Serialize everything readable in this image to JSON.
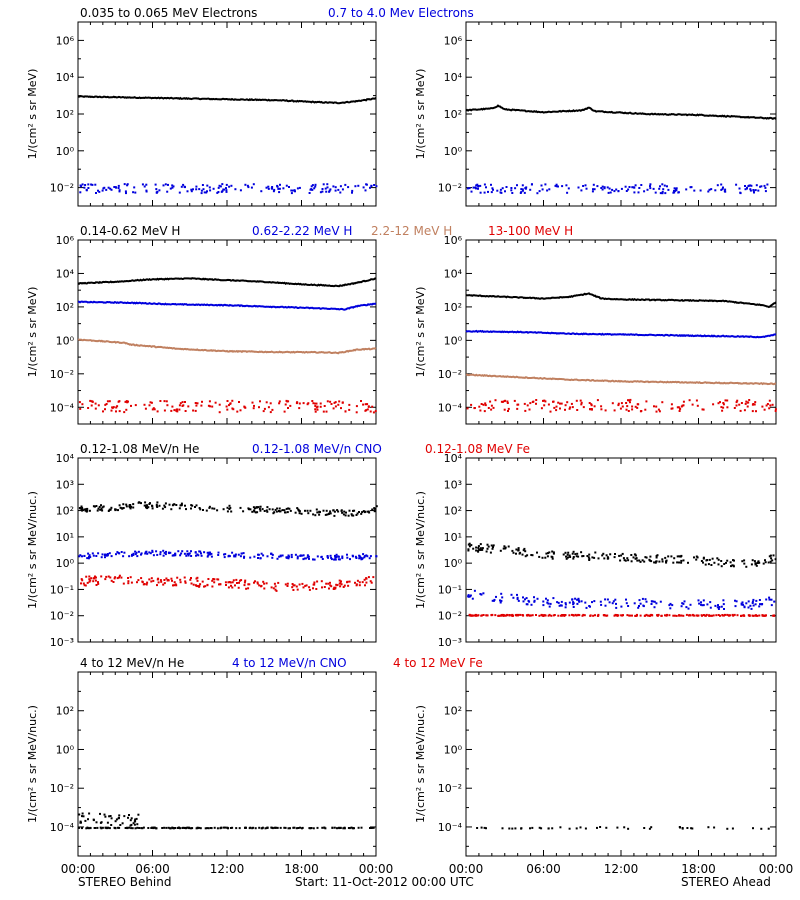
{
  "colors": {
    "black": "#000000",
    "blue": "#0000dd",
    "brown": "#c08060",
    "red": "#e00000"
  },
  "footer": {
    "left": "STEREO Behind",
    "center": "Start: 11-Oct-2012 00:00 UTC",
    "right": "STEREO Ahead"
  },
  "time_ticks": [
    "00:00",
    "06:00",
    "12:00",
    "18:00",
    "00:00"
  ],
  "rows": [
    {
      "legend": [
        {
          "text": "0.035 to 0.065 MeV Electrons",
          "color": "black"
        },
        {
          "text": "0.7 to 4.0 Mev Electrons",
          "color": "blue"
        }
      ],
      "ylabel": "1/(cm² s sr MeV)",
      "yticks": [
        "10⁻²",
        "10⁰",
        "10²",
        "10⁴",
        "10⁶"
      ]
    },
    {
      "legend": [
        {
          "text": "0.14-0.62 MeV H",
          "color": "black"
        },
        {
          "text": "0.62-2.22 MeV H",
          "color": "blue"
        },
        {
          "text": "2.2-12 MeV H",
          "color": "brown"
        },
        {
          "text": "13-100 MeV H",
          "color": "red"
        }
      ],
      "ylabel": "1/(cm² s sr MeV)",
      "yticks": [
        "10⁻⁴",
        "10⁻²",
        "10⁰",
        "10²",
        "10⁴",
        "10⁶"
      ]
    },
    {
      "legend": [
        {
          "text": "0.12-1.08 MeV/n He",
          "color": "black"
        },
        {
          "text": "0.12-1.08 MeV/n CNO",
          "color": "blue"
        },
        {
          "text": "0.12-1.08 MeV Fe",
          "color": "red"
        }
      ],
      "ylabel": "1/(cm² s sr MeV/nuc.)",
      "yticks": [
        "10⁻³",
        "10⁻²",
        "10⁻¹",
        "10⁰",
        "10¹",
        "10²",
        "10³",
        "10⁴"
      ]
    },
    {
      "legend": [
        {
          "text": "4 to 12 MeV/n He",
          "color": "black"
        },
        {
          "text": "4 to 12 MeV/n CNO",
          "color": "blue"
        },
        {
          "text": "4 to 12 MeV Fe",
          "color": "red"
        }
      ],
      "ylabel": "1/(cm² s sr MeV/nuc.)",
      "yticks": [
        "10⁻⁴",
        "10⁻²",
        "10⁰",
        "10²"
      ]
    }
  ],
  "chart_data": [
    {
      "type": "scatter",
      "spacecraft": "STEREO Behind",
      "row": 0,
      "xlim": [
        0,
        24
      ],
      "ylim": [
        -3,
        7
      ],
      "yscale": "log",
      "series": [
        {
          "color": "black",
          "style": "line",
          "x": [
            0,
            4,
            8,
            12,
            16,
            19,
            21,
            22.5,
            24
          ],
          "y": [
            2.95,
            2.9,
            2.85,
            2.8,
            2.75,
            2.65,
            2.6,
            2.7,
            2.85
          ]
        },
        {
          "color": "blue",
          "style": "dots",
          "x": [
            0,
            24
          ],
          "y": [
            -2.0,
            -2.0
          ],
          "spread": 0.25
        }
      ]
    },
    {
      "type": "scatter",
      "spacecraft": "STEREO Ahead",
      "row": 0,
      "xlim": [
        0,
        24
      ],
      "ylim": [
        -3,
        7
      ],
      "yscale": "log",
      "series": [
        {
          "color": "black",
          "style": "line",
          "x": [
            0,
            2,
            2.5,
            3,
            6,
            9,
            9.5,
            10,
            14,
            18,
            21,
            24
          ],
          "y": [
            2.2,
            2.3,
            2.45,
            2.25,
            2.1,
            2.2,
            2.35,
            2.15,
            2.0,
            1.95,
            1.85,
            1.75
          ]
        },
        {
          "color": "blue",
          "style": "dots",
          "x": [
            0,
            24
          ],
          "y": [
            -2.0,
            -2.0
          ],
          "spread": 0.25
        }
      ]
    },
    {
      "type": "scatter",
      "spacecraft": "STEREO Behind",
      "row": 1,
      "xlim": [
        0,
        24
      ],
      "ylim": [
        -5,
        6
      ],
      "yscale": "log",
      "series": [
        {
          "color": "black",
          "style": "line",
          "x": [
            0,
            3,
            6,
            9,
            12,
            15,
            18,
            21,
            22.5,
            24
          ],
          "y": [
            3.4,
            3.5,
            3.65,
            3.7,
            3.6,
            3.5,
            3.35,
            3.25,
            3.45,
            3.7
          ]
        },
        {
          "color": "blue",
          "style": "line",
          "x": [
            0,
            4,
            8,
            12,
            16,
            20,
            21.5,
            22.5,
            24
          ],
          "y": [
            2.3,
            2.25,
            2.15,
            2.1,
            2.0,
            1.9,
            1.85,
            2.05,
            2.2
          ]
        },
        {
          "color": "brown",
          "style": "line",
          "x": [
            0,
            3.8,
            4.2,
            8,
            12,
            16,
            20,
            21,
            22.5,
            24
          ],
          "y": [
            0.05,
            -0.15,
            -0.25,
            -0.5,
            -0.65,
            -0.7,
            -0.72,
            -0.75,
            -0.55,
            -0.5
          ]
        },
        {
          "color": "red",
          "style": "dots",
          "x": [
            0,
            24
          ],
          "y": [
            -3.9,
            -3.9
          ],
          "spread": 0.35
        }
      ]
    },
    {
      "type": "scatter",
      "spacecraft": "STEREO Ahead",
      "row": 1,
      "xlim": [
        0,
        24
      ],
      "ylim": [
        -5,
        6
      ],
      "yscale": "log",
      "series": [
        {
          "color": "black",
          "style": "line",
          "x": [
            0,
            3,
            6,
            8,
            9.5,
            10.5,
            12,
            16,
            20,
            23,
            23.5,
            24
          ],
          "y": [
            2.7,
            2.6,
            2.5,
            2.6,
            2.8,
            2.5,
            2.45,
            2.4,
            2.35,
            2.1,
            2.0,
            2.3
          ]
        },
        {
          "color": "blue",
          "style": "line",
          "x": [
            0,
            4,
            8,
            12,
            16,
            20,
            23,
            24
          ],
          "y": [
            0.55,
            0.5,
            0.4,
            0.35,
            0.3,
            0.25,
            0.2,
            0.35
          ]
        },
        {
          "color": "brown",
          "style": "line",
          "x": [
            0,
            4,
            8,
            12,
            16,
            20,
            24
          ],
          "y": [
            -2.05,
            -2.2,
            -2.35,
            -2.45,
            -2.5,
            -2.55,
            -2.6
          ]
        },
        {
          "color": "red",
          "style": "dots",
          "x": [
            0,
            24
          ],
          "y": [
            -3.85,
            -3.85
          ],
          "spread": 0.35
        }
      ]
    },
    {
      "type": "scatter",
      "spacecraft": "STEREO Behind",
      "row": 2,
      "xlim": [
        0,
        24
      ],
      "ylim": [
        -3,
        4
      ],
      "yscale": "log",
      "series": [
        {
          "color": "black",
          "style": "dots-dense",
          "x": [
            0,
            3,
            5,
            8,
            12,
            16,
            20,
            22,
            24
          ],
          "y": [
            2.1,
            2.15,
            2.25,
            2.2,
            2.1,
            2.05,
            1.95,
            1.95,
            2.1
          ],
          "spread": 0.12
        },
        {
          "color": "blue",
          "style": "dots-dense",
          "x": [
            0,
            4,
            8,
            12,
            16,
            20,
            24
          ],
          "y": [
            0.3,
            0.4,
            0.42,
            0.35,
            0.3,
            0.25,
            0.3
          ],
          "spread": 0.1
        },
        {
          "color": "red",
          "style": "dots-dense",
          "x": [
            0,
            4,
            8,
            12,
            16,
            20,
            22,
            24
          ],
          "y": [
            -0.65,
            -0.6,
            -0.65,
            -0.75,
            -0.85,
            -0.8,
            -0.75,
            -0.6
          ],
          "spread": 0.17
        }
      ]
    },
    {
      "type": "scatter",
      "spacecraft": "STEREO Ahead",
      "row": 2,
      "xlim": [
        0,
        24
      ],
      "ylim": [
        -3,
        4
      ],
      "yscale": "log",
      "series": [
        {
          "color": "black",
          "style": "dots-dense",
          "x": [
            0,
            3,
            6,
            10,
            14,
            18,
            21,
            23,
            24
          ],
          "y": [
            0.65,
            0.55,
            0.35,
            0.3,
            0.2,
            0.15,
            0.0,
            0.1,
            0.35
          ],
          "spread": 0.15
        },
        {
          "color": "blue",
          "style": "dots",
          "x": [
            0,
            3,
            6,
            10,
            14,
            18,
            22,
            24
          ],
          "y": [
            -1.15,
            -1.3,
            -1.45,
            -1.5,
            -1.5,
            -1.55,
            -1.55,
            -1.4
          ],
          "spread": 0.18
        },
        {
          "color": "red",
          "style": "dots-dense",
          "x": [
            0,
            24
          ],
          "y": [
            -1.95,
            -1.95
          ],
          "spread": 0.02
        }
      ]
    },
    {
      "type": "scatter",
      "spacecraft": "STEREO Behind",
      "row": 3,
      "xlim": [
        0,
        24
      ],
      "ylim": [
        -5.5,
        4
      ],
      "yscale": "log",
      "series": [
        {
          "color": "black",
          "style": "dots",
          "x": [
            0,
            24
          ],
          "y": [
            -4.0,
            -4.0
          ],
          "spread": 0.02
        },
        {
          "color": "black",
          "style": "dots-sparse",
          "x": [
            0,
            5
          ],
          "y": [
            -3.5,
            -3.6
          ],
          "spread": 0.3
        }
      ]
    },
    {
      "type": "scatter",
      "spacecraft": "STEREO Ahead",
      "row": 3,
      "xlim": [
        0,
        24
      ],
      "ylim": [
        -5.5,
        4
      ],
      "yscale": "log",
      "series": [
        {
          "color": "black",
          "style": "dots-sparse",
          "x": [
            0,
            24
          ],
          "y": [
            -4.0,
            -4.0
          ],
          "spread": 0.05
        }
      ]
    }
  ]
}
